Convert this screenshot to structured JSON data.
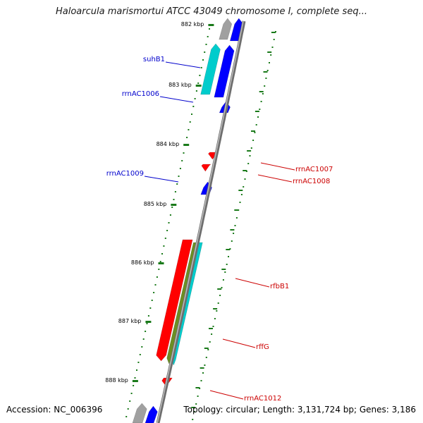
{
  "title": "Haloarcula marismortui ATCC 43049 chromosome I, complete seq...",
  "footer": {
    "accession": "Accession: NC_006396",
    "topology": "Topology: circular; Length: 3,131,724 bp; Genes: 3,186"
  },
  "colors": {
    "backbone": "#8c8c8c",
    "forward_labels": "#0000cc",
    "reverse_labels": "#cc0000",
    "tick": "#1a7a1a",
    "cds_forward": "#0000ff",
    "cds_reverse": "#ff0000",
    "rrna": "#00cccc",
    "trna_olive": "#6b8e23",
    "other_grey": "#a0a0a0"
  },
  "scale_ticks": [
    {
      "label": "882 kbp"
    },
    {
      "label": "883 kbp"
    },
    {
      "label": "884 kbp"
    },
    {
      "label": "885 kbp"
    },
    {
      "label": "886 kbp"
    },
    {
      "label": "887 kbp"
    },
    {
      "label": "888 kbp"
    }
  ],
  "genes_forward": [
    {
      "name": "suhB1"
    },
    {
      "name": "rrnAC1006"
    },
    {
      "name": "rrnAC1009"
    }
  ],
  "genes_reverse": [
    {
      "name": "rrnAC1007"
    },
    {
      "name": "rrnAC1008"
    },
    {
      "name": "rfbB1"
    },
    {
      "name": "rffG"
    },
    {
      "name": "rrnAC1012"
    }
  ]
}
